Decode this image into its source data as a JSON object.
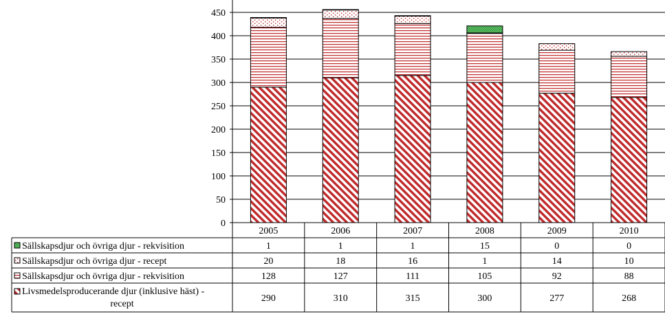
{
  "chart_data": {
    "type": "bar",
    "stacked": true,
    "categories": [
      "2005",
      "2006",
      "2007",
      "2008",
      "2009",
      "2010"
    ],
    "ylim": [
      0,
      450
    ],
    "yticks": [
      0,
      50,
      100,
      150,
      200,
      250,
      300,
      350,
      400,
      450
    ],
    "grid": true,
    "legend": "data-table-left",
    "series": [
      {
        "name": "Livsmedelsproducerande djur (inklusive häst) - recept",
        "name_lines": [
          "Livsmedelsproducerande djur (inklusive häst) -",
          "recept"
        ],
        "values": [
          290,
          310,
          315,
          300,
          277,
          268
        ],
        "color": "#c0282a",
        "pattern": "diagonal"
      },
      {
        "name": "Sällskapsdjur och övriga djur - rekvisition",
        "values": [
          128,
          127,
          111,
          105,
          92,
          88
        ],
        "color": "#c0282a",
        "pattern": "horizontal"
      },
      {
        "name": "Sällskapsdjur och övriga djur - recept",
        "values": [
          20,
          18,
          16,
          1,
          14,
          10
        ],
        "color": "#c0282a",
        "pattern": "dots"
      },
      {
        "name": "Sällskapsdjur och övriga djur - rekvisition",
        "values": [
          1,
          1,
          1,
          15,
          0,
          0
        ],
        "color": "#2e9e3a",
        "pattern": "green-check"
      }
    ]
  }
}
